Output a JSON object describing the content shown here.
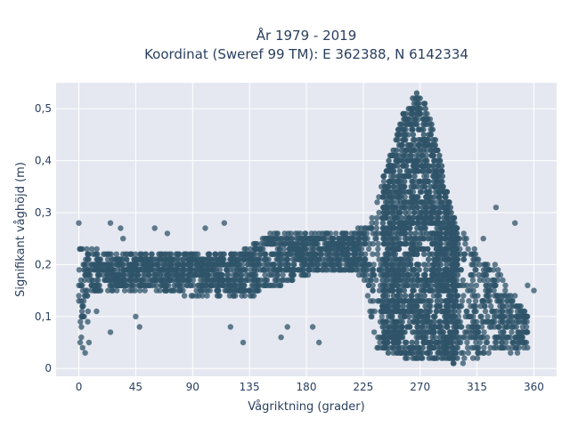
{
  "chart_data": {
    "type": "scatter",
    "title_line1": "År 1979 - 2019",
    "title_line2": "Koordinat (Sweref 99 TM): E 362388, N 6142334",
    "xlabel": "Vågriktning (grader)",
    "ylabel": "Signifikant våghöjd (m)",
    "xlim": [
      -18,
      378
    ],
    "ylim": [
      -0.015,
      0.55
    ],
    "x_ticks": [
      0,
      45,
      90,
      135,
      180,
      225,
      270,
      315,
      360
    ],
    "y_ticks": [
      0,
      0.1,
      0.2,
      0.3,
      0.4,
      0.5
    ],
    "y_tick_labels": [
      "0",
      "0,1",
      "0,2",
      "0,3",
      "0,4",
      "0,5"
    ],
    "grid": true,
    "marker_color": "#2f5469",
    "plot_bg": "#e5e8f0",
    "density_envelope": {
      "x": [
        0,
        10,
        30,
        60,
        90,
        120,
        135,
        150,
        180,
        210,
        225,
        235,
        245,
        255,
        262,
        268,
        272,
        278,
        285,
        295,
        305,
        315,
        330,
        345,
        355
      ],
      "y_low": [
        0.03,
        0.14,
        0.15,
        0.15,
        0.14,
        0.14,
        0.14,
        0.15,
        0.18,
        0.19,
        0.18,
        0.04,
        0.03,
        0.02,
        0.02,
        0.02,
        0.02,
        0.02,
        0.02,
        0.01,
        0.01,
        0.02,
        0.03,
        0.03,
        0.04
      ],
      "y_high": [
        0.24,
        0.23,
        0.22,
        0.22,
        0.22,
        0.22,
        0.23,
        0.26,
        0.26,
        0.26,
        0.27,
        0.32,
        0.4,
        0.48,
        0.52,
        0.53,
        0.52,
        0.48,
        0.42,
        0.3,
        0.26,
        0.22,
        0.2,
        0.14,
        0.1
      ]
    }
  }
}
